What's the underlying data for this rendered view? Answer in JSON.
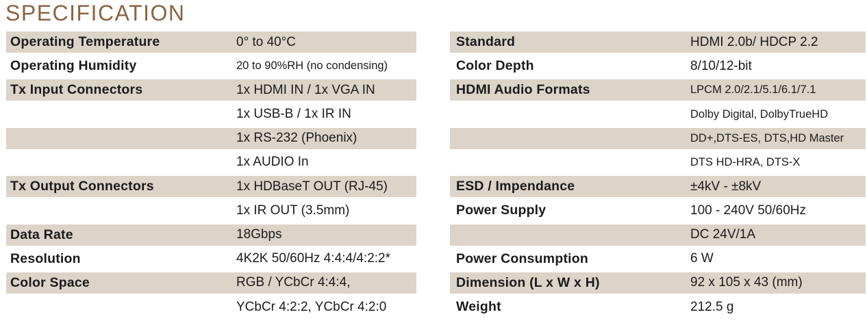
{
  "title": "SPECIFICATION",
  "colors": {
    "accent_brown": "#8a6440",
    "row_beige": "#ddd4c9",
    "text": "#1b1b1b",
    "background": "#ffffff"
  },
  "tables": {
    "left": {
      "rows": [
        {
          "label": "Operating Temperature",
          "value": "0° to 40°C"
        },
        {
          "label": "Operating Humidity",
          "value": "20 to 90%RH (no condensing)",
          "small": true
        },
        {
          "label": "Tx Input Connectors",
          "value": "1x HDMI IN / 1x VGA IN"
        },
        {
          "label": "",
          "value": "1x USB-B / 1x IR IN"
        },
        {
          "label": "",
          "value": "1x RS-232 (Phoenix)"
        },
        {
          "label": "",
          "value": "1x AUDIO In"
        },
        {
          "label": "Tx Output Connectors",
          "value": "1x HDBaseT OUT (RJ-45)"
        },
        {
          "label": "",
          "value": "1x IR OUT (3.5mm)"
        },
        {
          "label": "Data Rate",
          "value": "18Gbps"
        },
        {
          "label": "Resolution",
          "value": "4K2K 50/60Hz 4:4:4/4:2:2*"
        },
        {
          "label": "Color Space",
          "value": "RGB / YCbCr 4:4:4,"
        },
        {
          "label": "",
          "value": "YCbCr 4:2:2, YCbCr 4:2:0"
        }
      ]
    },
    "right": {
      "rows": [
        {
          "label": "Standard",
          "value": "HDMI 2.0b/ HDCP 2.2"
        },
        {
          "label": "Color Depth",
          "value": "8/10/12-bit"
        },
        {
          "label": "HDMI Audio Formats",
          "value": "LPCM 2.0/2.1/5.1/6.1/7.1",
          "small": true
        },
        {
          "label": "",
          "value": "Dolby Digital, DolbyTrueHD",
          "small": true
        },
        {
          "label": "",
          "value": "DD+,DTS-ES, DTS,HD Master",
          "small": true
        },
        {
          "label": "",
          "value": "DTS HD-HRA, DTS-X",
          "small": true
        },
        {
          "label": "ESD / Impendance",
          "value": "±4kV - ±8kV"
        },
        {
          "label": "Power Supply",
          "value": "100 - 240V 50/60Hz"
        },
        {
          "label": "",
          "value": "DC 24V/1A"
        },
        {
          "label": "Power Consumption",
          "value": "6 W"
        },
        {
          "label": "Dimension (L x W x H)",
          "value": "92 x 105 x 43 (mm)"
        },
        {
          "label": "Weight",
          "value": "212.5 g"
        }
      ]
    }
  }
}
